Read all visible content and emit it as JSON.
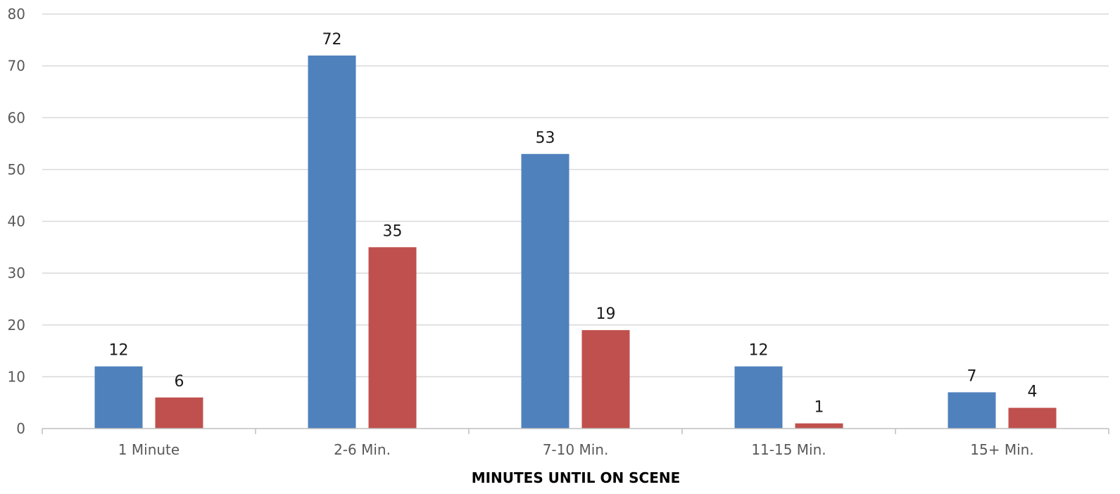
{
  "chart_data": {
    "type": "bar",
    "xlabel": "MINUTES UNTIL ON SCENE",
    "ylabel": "",
    "title": "",
    "categories": [
      "1 Minute",
      "2-6 Min.",
      "7-10 Min.",
      "11-15 Min.",
      "15+ Min."
    ],
    "series": [
      {
        "color": "#4f81bd",
        "values": [
          12,
          72,
          53,
          12,
          7
        ]
      },
      {
        "color": "#c0504d",
        "values": [
          6,
          35,
          19,
          1,
          4
        ]
      }
    ],
    "ylim": [
      0,
      80
    ],
    "yticks": [
      0,
      10,
      20,
      30,
      40,
      50,
      60,
      70,
      80
    ],
    "grid": true,
    "legend": "none"
  }
}
